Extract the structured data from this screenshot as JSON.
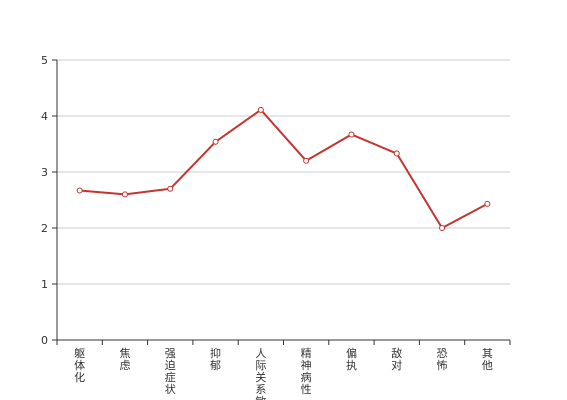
{
  "chart_data": {
    "type": "line",
    "categories": [
      "躯体化",
      "焦虑",
      "强迫症状",
      "抑郁",
      "人际关系敏感",
      "精神病性",
      "偏执",
      "敌对",
      "恐怖",
      "其他"
    ],
    "series": [
      {
        "values": [
          2.67,
          2.6,
          2.7,
          3.54,
          4.11,
          3.2,
          3.67,
          3.33,
          2.0,
          2.43
        ]
      }
    ],
    "ylim": [
      0,
      5
    ],
    "yticks": [
      0,
      1,
      2,
      3,
      4,
      5
    ],
    "grid": true,
    "title": "",
    "xlabel": "",
    "ylabel": "",
    "colors": {
      "line": "#c23531",
      "grid": "#cccccc",
      "axis": "#333333"
    }
  }
}
